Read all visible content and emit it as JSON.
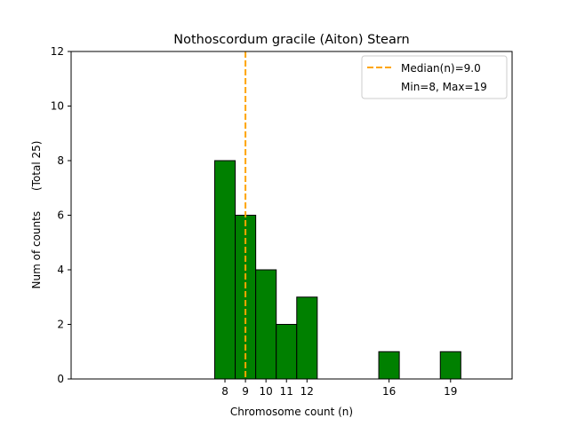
{
  "chart_data": {
    "type": "bar",
    "title": "Nothoscordum gracile (Aiton) Stearn",
    "xlabel": "Chromosome count (n)",
    "ylabel": "Num of counts      (Total 25)",
    "categories": [
      8,
      9,
      10,
      11,
      12,
      16,
      19
    ],
    "values": [
      8,
      6,
      4,
      2,
      3,
      1,
      1
    ],
    "xticks": [
      "8",
      "9",
      "10",
      "11",
      "12",
      "16",
      "19"
    ],
    "yticks": [
      "0",
      "2",
      "4",
      "6",
      "8",
      "10",
      "12"
    ],
    "xlim": [
      0.5,
      22.0
    ],
    "ylim": [
      0,
      12
    ],
    "bar_color": "#008000",
    "bar_edge_color": "#000000",
    "median": 9.0,
    "median_color": "#FFA500",
    "legend": {
      "position": "upper right",
      "median_label": "Median(n)=9.0",
      "range_label": "Min=8, Max=19"
    }
  }
}
